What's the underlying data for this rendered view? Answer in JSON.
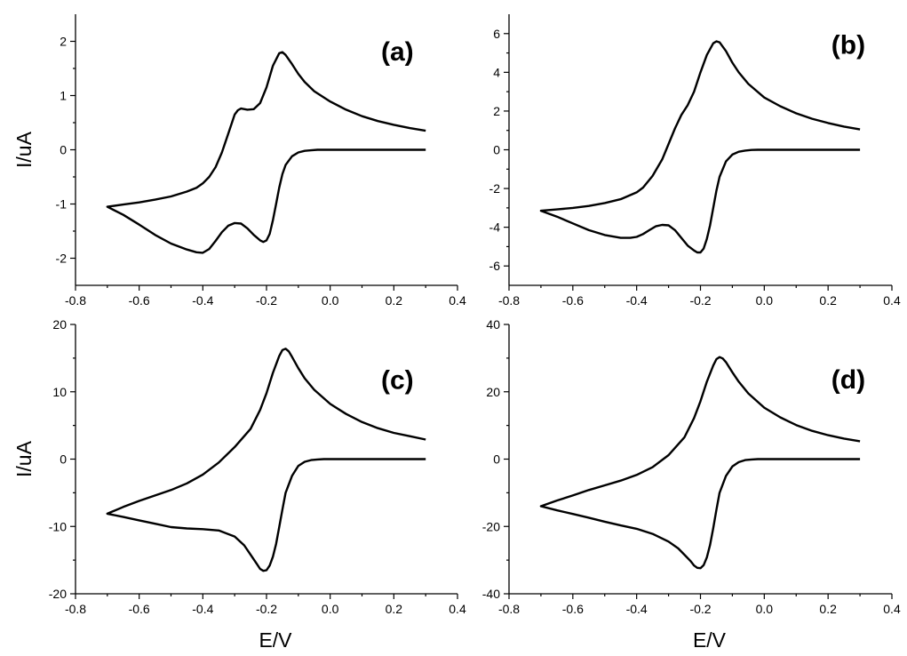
{
  "chart_data": [
    {
      "type": "line",
      "panel_label": "(a)",
      "xlabel": "",
      "ylabel": "I/uA",
      "xlim": [
        -0.8,
        0.4
      ],
      "ylim": [
        -2.5,
        2.5
      ],
      "xticks": [
        -0.8,
        -0.6,
        -0.4,
        -0.2,
        0.0,
        0.2,
        0.4
      ],
      "xtick_labels": [
        "-0.8",
        "-0.6",
        "-0.4",
        "-0.2",
        "0.0",
        "0.2",
        "0.4"
      ],
      "yticks": [
        -2,
        -1,
        0,
        1,
        2
      ],
      "ytick_labels": [
        "-2",
        "-1",
        "0",
        "1",
        "2"
      ],
      "grid": false,
      "series": [
        {
          "x": [
            0.3,
            0.25,
            0.2,
            0.15,
            0.1,
            0.05,
            0.0,
            -0.05,
            -0.08,
            -0.1,
            -0.12,
            -0.14,
            -0.15,
            -0.16,
            -0.18,
            -0.2,
            -0.22,
            -0.24,
            -0.26,
            -0.28,
            -0.29,
            -0.3,
            -0.32,
            -0.34,
            -0.36,
            -0.38,
            -0.4,
            -0.42,
            -0.45,
            -0.5,
            -0.55,
            -0.6,
            -0.65,
            -0.7,
            -0.65,
            -0.6,
            -0.55,
            -0.5,
            -0.45,
            -0.42,
            -0.4,
            -0.38,
            -0.36,
            -0.34,
            -0.32,
            -0.3,
            -0.28,
            -0.26,
            -0.24,
            -0.22,
            -0.21,
            -0.2,
            -0.19,
            -0.18,
            -0.17,
            -0.16,
            -0.15,
            -0.14,
            -0.12,
            -0.1,
            -0.08,
            -0.06,
            -0.04,
            -0.02,
            0.0,
            0.05,
            0.1,
            0.2,
            0.3
          ],
          "y": [
            0.35,
            0.4,
            0.46,
            0.53,
            0.62,
            0.74,
            0.89,
            1.08,
            1.25,
            1.4,
            1.58,
            1.75,
            1.8,
            1.78,
            1.55,
            1.15,
            0.86,
            0.75,
            0.74,
            0.76,
            0.73,
            0.65,
            0.3,
            -0.05,
            -0.32,
            -0.5,
            -0.62,
            -0.7,
            -0.77,
            -0.86,
            -0.92,
            -0.97,
            -1.01,
            -1.05,
            -1.2,
            -1.38,
            -1.57,
            -1.73,
            -1.84,
            -1.89,
            -1.9,
            -1.83,
            -1.68,
            -1.52,
            -1.4,
            -1.35,
            -1.36,
            -1.45,
            -1.57,
            -1.67,
            -1.7,
            -1.67,
            -1.55,
            -1.3,
            -1.0,
            -0.7,
            -0.45,
            -0.28,
            -0.12,
            -0.05,
            -0.02,
            -0.01,
            0.0,
            0.0,
            0.0,
            0.0,
            0.0,
            0.0,
            0.0
          ]
        }
      ]
    },
    {
      "type": "line",
      "panel_label": "(b)",
      "xlabel": "",
      "ylabel": "",
      "xlim": [
        -0.8,
        0.4
      ],
      "ylim": [
        -7,
        7
      ],
      "xticks": [
        -0.8,
        -0.6,
        -0.4,
        -0.2,
        0.0,
        0.2,
        0.4
      ],
      "xtick_labels": [
        "-0.8",
        "-0.6",
        "-0.4",
        "-0.2",
        "0.0",
        "0.2",
        "0.4"
      ],
      "yticks": [
        -6,
        -4,
        -2,
        0,
        2,
        4,
        6
      ],
      "ytick_labels": [
        "-6",
        "-4",
        "-2",
        "0",
        "2",
        "4",
        "6"
      ],
      "grid": false,
      "series": [
        {
          "x": [
            0.3,
            0.25,
            0.2,
            0.15,
            0.1,
            0.05,
            0.0,
            -0.05,
            -0.08,
            -0.1,
            -0.12,
            -0.14,
            -0.15,
            -0.16,
            -0.18,
            -0.2,
            -0.22,
            -0.24,
            -0.26,
            -0.28,
            -0.3,
            -0.32,
            -0.35,
            -0.38,
            -0.4,
            -0.45,
            -0.5,
            -0.55,
            -0.6,
            -0.65,
            -0.7,
            -0.65,
            -0.6,
            -0.55,
            -0.5,
            -0.45,
            -0.42,
            -0.4,
            -0.38,
            -0.36,
            -0.34,
            -0.32,
            -0.3,
            -0.28,
            -0.26,
            -0.24,
            -0.22,
            -0.21,
            -0.2,
            -0.19,
            -0.18,
            -0.17,
            -0.16,
            -0.15,
            -0.14,
            -0.12,
            -0.1,
            -0.08,
            -0.06,
            -0.04,
            -0.02,
            0.0,
            0.05,
            0.1,
            0.2,
            0.3
          ],
          "y": [
            1.05,
            1.2,
            1.38,
            1.6,
            1.88,
            2.25,
            2.7,
            3.4,
            4.0,
            4.5,
            5.1,
            5.55,
            5.6,
            5.5,
            4.9,
            4.0,
            3.0,
            2.3,
            1.8,
            1.1,
            0.3,
            -0.5,
            -1.35,
            -1.95,
            -2.2,
            -2.55,
            -2.75,
            -2.9,
            -3.0,
            -3.08,
            -3.15,
            -3.45,
            -3.8,
            -4.15,
            -4.4,
            -4.55,
            -4.55,
            -4.5,
            -4.35,
            -4.15,
            -3.95,
            -3.88,
            -3.9,
            -4.15,
            -4.55,
            -4.95,
            -5.2,
            -5.3,
            -5.3,
            -5.1,
            -4.6,
            -3.9,
            -3.0,
            -2.1,
            -1.4,
            -0.6,
            -0.25,
            -0.1,
            -0.04,
            -0.01,
            0.0,
            0.0,
            0.0,
            0.0,
            0.0,
            0.0
          ]
        }
      ]
    },
    {
      "type": "line",
      "panel_label": "(c)",
      "xlabel": "E/V",
      "ylabel": "I/uA",
      "xlim": [
        -0.8,
        0.4
      ],
      "ylim": [
        -20,
        20
      ],
      "xticks": [
        -0.8,
        -0.6,
        -0.4,
        -0.2,
        0.0,
        0.2,
        0.4
      ],
      "xtick_labels": [
        "-0.8",
        "-0.6",
        "-0.4",
        "-0.2",
        "0.0",
        "0.2",
        "0.4"
      ],
      "yticks": [
        -20,
        -10,
        0,
        10,
        20
      ],
      "ytick_labels": [
        "-20",
        "-10",
        "0",
        "10",
        "20"
      ],
      "grid": false,
      "series": [
        {
          "x": [
            0.3,
            0.25,
            0.2,
            0.15,
            0.1,
            0.05,
            0.0,
            -0.05,
            -0.08,
            -0.1,
            -0.12,
            -0.13,
            -0.14,
            -0.15,
            -0.16,
            -0.18,
            -0.2,
            -0.22,
            -0.25,
            -0.3,
            -0.35,
            -0.4,
            -0.45,
            -0.5,
            -0.55,
            -0.6,
            -0.65,
            -0.7,
            -0.65,
            -0.6,
            -0.55,
            -0.5,
            -0.45,
            -0.4,
            -0.35,
            -0.3,
            -0.27,
            -0.25,
            -0.23,
            -0.22,
            -0.21,
            -0.2,
            -0.19,
            -0.18,
            -0.17,
            -0.16,
            -0.15,
            -0.14,
            -0.12,
            -0.1,
            -0.08,
            -0.06,
            -0.04,
            -0.02,
            0.0,
            0.05,
            0.1,
            0.2,
            0.3
          ],
          "y": [
            2.9,
            3.4,
            3.9,
            4.6,
            5.5,
            6.7,
            8.2,
            10.3,
            12.0,
            13.5,
            15.2,
            16.0,
            16.4,
            16.2,
            15.3,
            12.8,
            9.8,
            7.3,
            4.5,
            1.8,
            -0.5,
            -2.3,
            -3.6,
            -4.6,
            -5.4,
            -6.2,
            -7.1,
            -8.1,
            -8.6,
            -9.1,
            -9.6,
            -10.1,
            -10.3,
            -10.4,
            -10.6,
            -11.5,
            -12.8,
            -14.2,
            -15.6,
            -16.3,
            -16.6,
            -16.5,
            -15.8,
            -14.5,
            -12.6,
            -10.1,
            -7.5,
            -5.0,
            -2.5,
            -1.0,
            -0.4,
            -0.15,
            -0.05,
            0.0,
            0.0,
            0.0,
            0.0,
            0.0,
            0.0
          ]
        }
      ]
    },
    {
      "type": "line",
      "panel_label": "(d)",
      "xlabel": "E/V",
      "ylabel": "",
      "xlim": [
        -0.8,
        0.4
      ],
      "ylim": [
        -40,
        40
      ],
      "xticks": [
        -0.8,
        -0.6,
        -0.4,
        -0.2,
        0.0,
        0.2,
        0.4
      ],
      "xtick_labels": [
        "-0.8",
        "-0.6",
        "-0.4",
        "-0.2",
        "0.0",
        "0.2",
        "0.4"
      ],
      "yticks": [
        -40,
        -20,
        0,
        20,
        40
      ],
      "ytick_labels": [
        "-40",
        "-20",
        "0",
        "20",
        "40"
      ],
      "grid": false,
      "series": [
        {
          "x": [
            0.3,
            0.25,
            0.2,
            0.15,
            0.1,
            0.05,
            0.0,
            -0.05,
            -0.08,
            -0.1,
            -0.12,
            -0.13,
            -0.14,
            -0.15,
            -0.16,
            -0.18,
            -0.2,
            -0.22,
            -0.25,
            -0.3,
            -0.35,
            -0.4,
            -0.45,
            -0.5,
            -0.55,
            -0.6,
            -0.65,
            -0.7,
            -0.65,
            -0.6,
            -0.55,
            -0.5,
            -0.45,
            -0.4,
            -0.35,
            -0.3,
            -0.27,
            -0.25,
            -0.23,
            -0.22,
            -0.21,
            -0.2,
            -0.19,
            -0.18,
            -0.17,
            -0.16,
            -0.15,
            -0.14,
            -0.12,
            -0.1,
            -0.08,
            -0.06,
            -0.04,
            -0.02,
            0.0,
            0.05,
            0.1,
            0.2,
            0.3
          ],
          "y": [
            5.3,
            6.1,
            7.1,
            8.4,
            10.1,
            12.4,
            15.3,
            19.5,
            23.0,
            25.8,
            28.8,
            29.9,
            30.3,
            29.7,
            27.8,
            23.0,
            17.2,
            12.2,
            6.5,
            1.2,
            -2.4,
            -4.7,
            -6.4,
            -7.8,
            -9.2,
            -10.8,
            -12.3,
            -14.0,
            -15.2,
            -16.3,
            -17.4,
            -18.6,
            -19.7,
            -20.7,
            -22.2,
            -24.5,
            -26.5,
            -28.4,
            -30.4,
            -31.6,
            -32.3,
            -32.4,
            -31.5,
            -29.2,
            -25.5,
            -20.5,
            -15.0,
            -10.0,
            -5.0,
            -2.2,
            -0.9,
            -0.3,
            -0.1,
            0.0,
            0.0,
            0.0,
            0.0,
            0.0,
            0.0
          ]
        }
      ]
    }
  ]
}
